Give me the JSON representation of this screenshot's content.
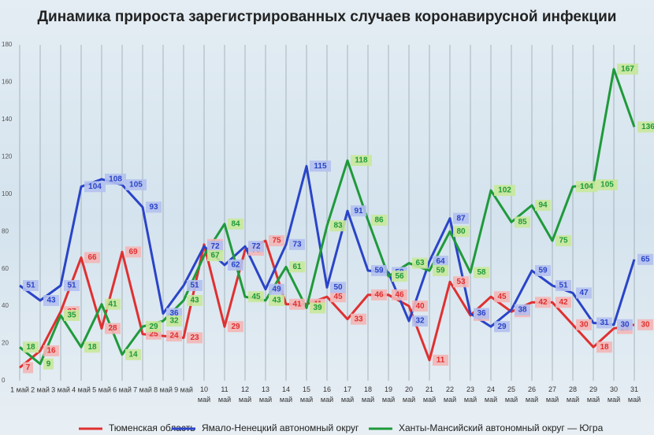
{
  "chart_data": {
    "type": "line",
    "title": "Динамика прироста зарегистрированных случаев коронавирусной инфекции",
    "categories": [
      "1 май",
      "2 май",
      "3 май",
      "4 май",
      "5 май",
      "6 май",
      "7 май",
      "8 май",
      "9 май",
      "10\nмай",
      "11\nмай",
      "12\nмай",
      "13\nмай",
      "14\nмай",
      "15\nмай",
      "16\nмай",
      "17\nмай",
      "18\nмай",
      "19\nмай",
      "20\nмай",
      "21\nмай",
      "22\nмай",
      "23\nмай",
      "24\nмай",
      "25\nмай",
      "26\nмай",
      "27\nмай",
      "28\nмай",
      "29\nмай",
      "30\nмай",
      "31\nмай"
    ],
    "series": [
      {
        "name": "Тюменская область",
        "color": "#e03030",
        "values": [
          7,
          16,
          37,
          66,
          28,
          69,
          25,
          24,
          23,
          73,
          29,
          70,
          75,
          41,
          41,
          45,
          33,
          46,
          46,
          40,
          11,
          53,
          35,
          45,
          37,
          42,
          42,
          30,
          18,
          28,
          30
        ]
      },
      {
        "name": "Ямало-Ненецкий автономный округ",
        "color": "#2a44c8",
        "values": [
          51,
          43,
          51,
          104,
          108,
          105,
          93,
          36,
          51,
          72,
          62,
          72,
          49,
          73,
          115,
          50,
          91,
          59,
          58,
          32,
          64,
          87,
          36,
          29,
          38,
          59,
          51,
          47,
          31,
          30,
          65
        ]
      },
      {
        "name": "Ханты-Мансийский автономный округ — Югра",
        "color": "#1f9a3a",
        "values": [
          18,
          9,
          35,
          18,
          41,
          14,
          29,
          32,
          43,
          67,
          84,
          45,
          43,
          61,
          39,
          83,
          118,
          86,
          56,
          63,
          59,
          80,
          58,
          102,
          85,
          94,
          75,
          104,
          105,
          167,
          136
        ]
      }
    ],
    "ylim": [
      0,
      180
    ],
    "yticks": [
      0,
      20,
      40,
      60,
      80,
      100,
      120,
      140,
      160,
      180
    ],
    "grid": "x",
    "legend": "bottom"
  }
}
